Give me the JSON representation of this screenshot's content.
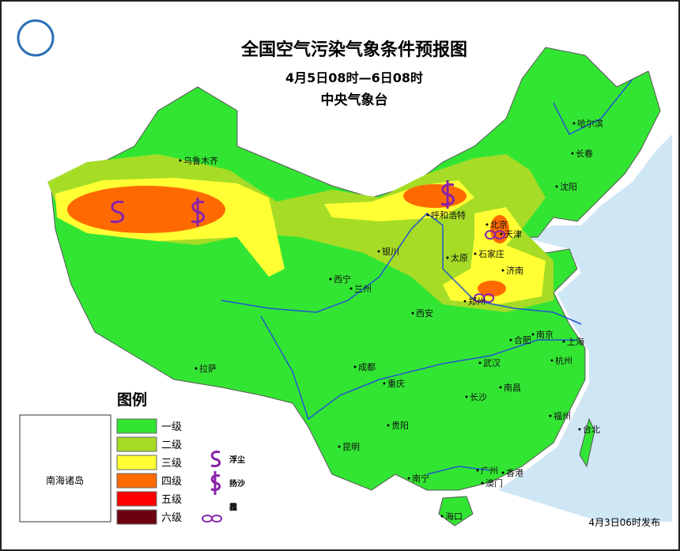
{
  "header": {
    "title": "全国空气污染气象条件预报图",
    "subtitle": "4月5日08时—6日08时",
    "agency": "中央气象台"
  },
  "cities": [
    "乌鲁木齐",
    "哈尔滨",
    "长春",
    "沈阳",
    "呼和浩特",
    "北京",
    "天津",
    "银川",
    "太原",
    "石家庄",
    "济南",
    "西宁",
    "兰州",
    "郑州",
    "西安",
    "合肥",
    "南京",
    "上海",
    "拉萨",
    "成都",
    "武汉",
    "杭州",
    "重庆",
    "长沙",
    "南昌",
    "福州",
    "台北",
    "贵阳",
    "昆明",
    "南宁",
    "广州",
    "香港",
    "澳门",
    "海口"
  ],
  "legend": {
    "title": "图例",
    "levels": [
      {
        "label": "一级",
        "color": "#33e533"
      },
      {
        "label": "二级",
        "color": "#a6dc26"
      },
      {
        "label": "三级",
        "color": "#ffff33"
      },
      {
        "label": "四级",
        "color": "#ff6a00"
      },
      {
        "label": "五级",
        "color": "#ff0000"
      },
      {
        "label": "六级",
        "color": "#6b0010"
      }
    ],
    "symbols": [
      "浮尘",
      "扬沙",
      "霾"
    ]
  },
  "inset": "南海诸岛",
  "release": "4月3日06时发布"
}
